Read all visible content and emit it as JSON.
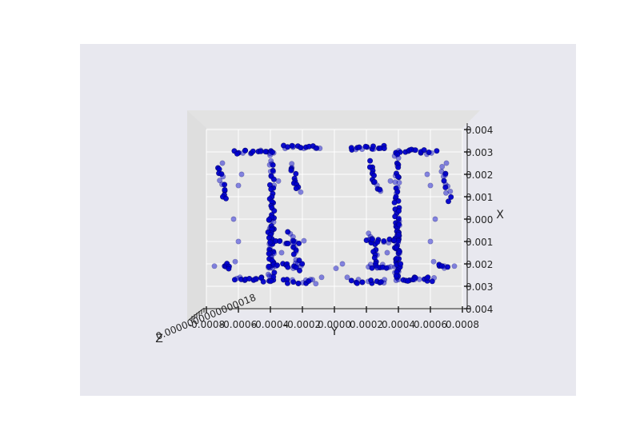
{
  "chart_data": {
    "type": "scatter",
    "projection": "3d",
    "view": "looking down the Z axis; Y horizontal, X vertical",
    "xlabel": "Y",
    "ylabel": "X",
    "zlabel": "Z",
    "y_axis_ticks": [
      "-0.0008",
      "-0.0006",
      "-0.0004",
      "-0.0002",
      "0.0000",
      "0.0002",
      "0.0004",
      "0.0006",
      "0.0008"
    ],
    "x_axis_ticks": [
      "0.004",
      "0.003",
      "0.002",
      "0.001",
      "0.000",
      "0.001",
      "0.002",
      "0.003",
      "0.004"
    ],
    "z_axis_tick_text": "0.0000000000000018",
    "ylim": [
      -0.0008,
      0.0008
    ],
    "xlim": [
      -0.004,
      0.004
    ],
    "marker_color": "#0000cc",
    "panel_color": "#e8e8ef",
    "pane_color": "#e6e6e6",
    "grid": true,
    "series": [
      {
        "segments": [
          {
            "y": [
              -0.00063,
              -0.00039
            ],
            "x": [
              -0.003,
              -0.003
            ]
          },
          {
            "y": [
              -0.00032,
              -0.0001
            ],
            "x": [
              -0.0032,
              -0.0032
            ]
          },
          {
            "y": [
              0.0001,
              0.00032
            ],
            "x": [
              -0.0032,
              -0.0032
            ]
          },
          {
            "y": [
              0.00039,
              0.00063
            ],
            "x": [
              -0.003,
              -0.003
            ]
          },
          {
            "y": [
              -0.00063,
              -0.00039
            ],
            "x": [
              0.0027,
              0.0027
            ]
          },
          {
            "y": [
              -0.00032,
              -0.00012
            ],
            "x": [
              0.0028,
              0.0028
            ]
          },
          {
            "y": [
              0.00012,
              0.00032
            ],
            "x": [
              0.0028,
              0.0028
            ]
          },
          {
            "y": [
              0.00039,
              0.00063
            ],
            "x": [
              0.0027,
              0.0027
            ]
          },
          {
            "y": [
              -0.00039,
              -0.00039
            ],
            "x": [
              -0.003,
              0.0027
            ]
          },
          {
            "y": [
              0.00039,
              0.00039
            ],
            "x": [
              -0.003,
              0.0027
            ]
          },
          {
            "y": [
              -0.0004,
              -0.0004
            ],
            "x": [
              -0.0001,
              0.0025
            ]
          },
          {
            "y": [
              0.0004,
              0.0004
            ],
            "x": [
              -0.0001,
              0.0025
            ]
          },
          {
            "y": [
              -0.00072,
              -0.00068
            ],
            "x": [
              -0.0023,
              -0.0009
            ]
          },
          {
            "y": [
              0.00068,
              0.00072
            ],
            "x": [
              -0.0023,
              -0.0009
            ]
          },
          {
            "y": [
              -0.0007,
              -0.00065
            ],
            "x": [
              0.002,
              0.0022
            ]
          },
          {
            "y": [
              0.00065,
              0.0007
            ],
            "x": [
              0.002,
              0.0022
            ]
          },
          {
            "y": [
              -0.00028,
              -0.00022
            ],
            "x": [
              -0.0025,
              -0.0012
            ]
          },
          {
            "y": [
              0.00022,
              0.00028
            ],
            "x": [
              -0.0025,
              -0.0012
            ]
          },
          {
            "y": [
              -0.00028,
              -0.00022
            ],
            "x": [
              0.0006,
              0.0022
            ]
          },
          {
            "y": [
              0.00022,
              0.00028
            ],
            "x": [
              0.0006,
              0.0022
            ]
          },
          {
            "y": [
              -0.0004,
              -0.0002
            ],
            "x": [
              0.001,
              0.001
            ]
          },
          {
            "y": [
              0.0002,
              0.0004
            ],
            "x": [
              0.001,
              0.001
            ]
          },
          {
            "y": [
              -0.0004,
              -0.0002
            ],
            "x": [
              0.0021,
              0.0021
            ]
          },
          {
            "y": [
              0.0002,
              0.0004
            ],
            "x": [
              0.0021,
              0.0021
            ]
          }
        ],
        "scattered_points": [
          {
            "y": -0.0006,
            "x": -0.0015
          },
          {
            "y": -0.00063,
            "x": 0.0
          },
          {
            "y": -0.0006,
            "x": 0.001
          },
          {
            "y": -0.00062,
            "x": 0.0019
          },
          {
            "y": -0.00058,
            "x": -0.002
          },
          {
            "y": 0.0006,
            "x": -0.0015
          },
          {
            "y": 0.00063,
            "x": 0.0
          },
          {
            "y": 0.0006,
            "x": 0.001
          },
          {
            "y": 0.00062,
            "x": 0.0019
          },
          {
            "y": 0.00058,
            "x": -0.002
          },
          {
            "y": -0.00015,
            "x": 0.0027
          },
          {
            "y": 0.00015,
            "x": 0.0027
          },
          {
            "y": -8e-05,
            "x": 0.0026
          },
          {
            "y": 8e-05,
            "x": 0.0026
          },
          {
            "y": 1e-05,
            "x": 0.0022
          },
          {
            "y": 5e-05,
            "x": 0.002
          },
          {
            "y": -0.0005,
            "x": 0.0027
          },
          {
            "y": 0.0005,
            "x": 0.0027
          },
          {
            "y": -0.00075,
            "x": 0.0021
          },
          {
            "y": 0.00075,
            "x": 0.0021
          },
          {
            "y": -0.0007,
            "x": -0.0025
          },
          {
            "y": 0.0007,
            "x": -0.0025
          },
          {
            "y": -0.00035,
            "x": -0.0017
          },
          {
            "y": 0.00035,
            "x": -0.0017
          },
          {
            "y": -0.00033,
            "x": 0.0015
          },
          {
            "y": 0.00033,
            "x": 0.0015
          }
        ]
      }
    ]
  }
}
